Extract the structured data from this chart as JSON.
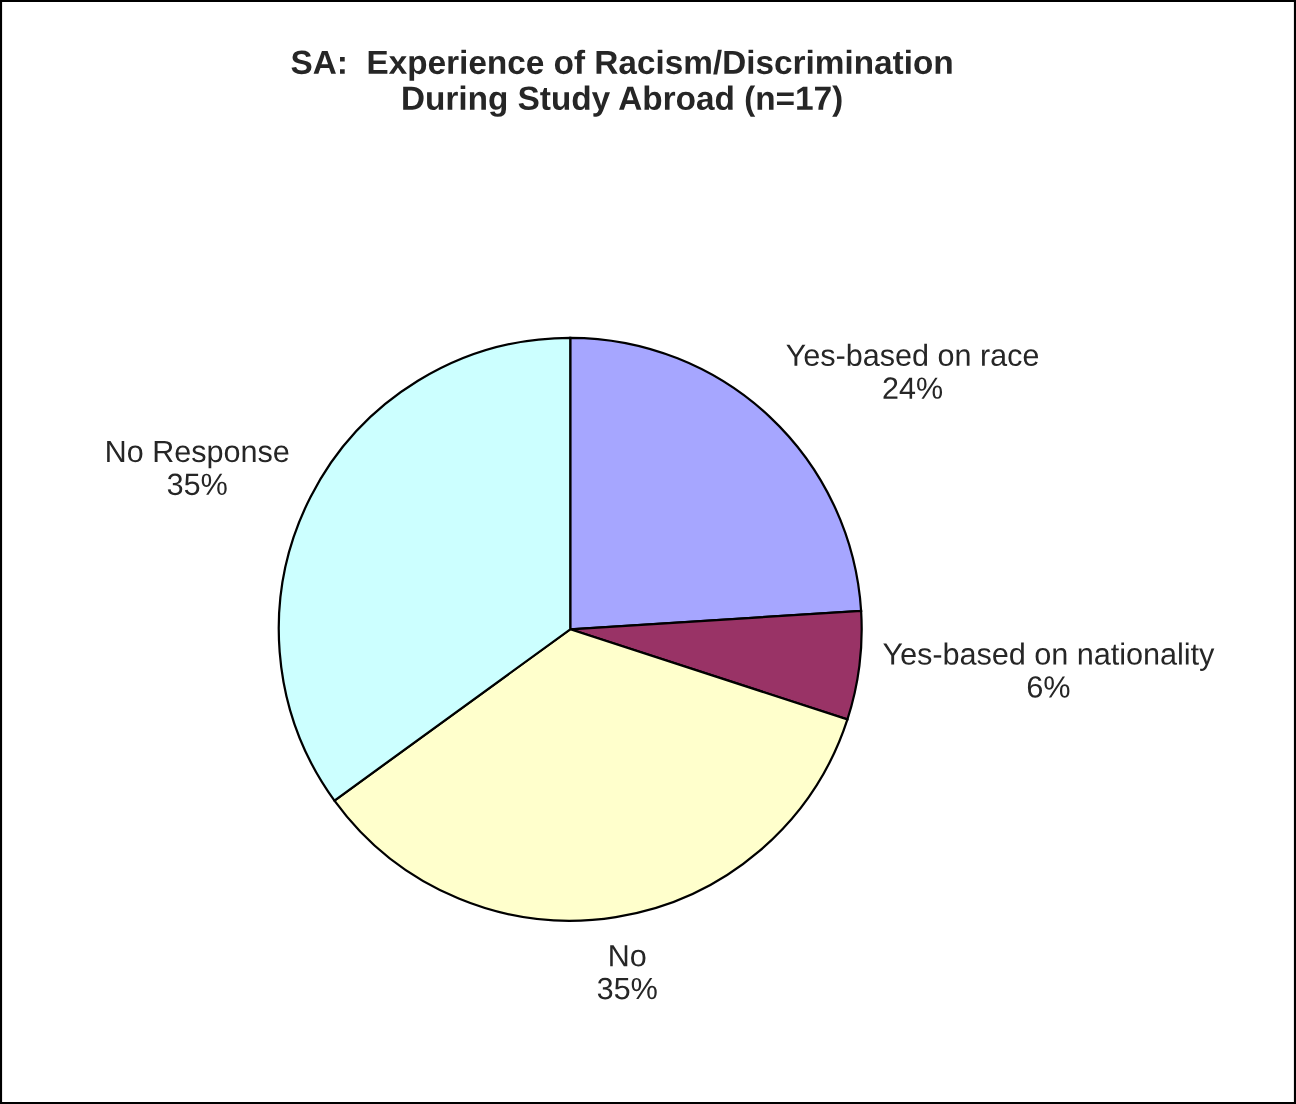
{
  "chart_data": {
    "type": "pie",
    "title": "SA:  Experience of Racism/Discrimination\nDuring Study Abroad (n=17)",
    "categories": [
      "Yes-based on race",
      "Yes-based on nationality",
      "No",
      "No Response"
    ],
    "values": [
      24,
      6,
      35,
      35
    ],
    "value_labels": [
      "24%",
      "6%",
      "35%",
      "35%"
    ],
    "colors": [
      "#a6a6ff",
      "#993366",
      "#ffffcc",
      "#ccffff"
    ],
    "legend": false
  }
}
